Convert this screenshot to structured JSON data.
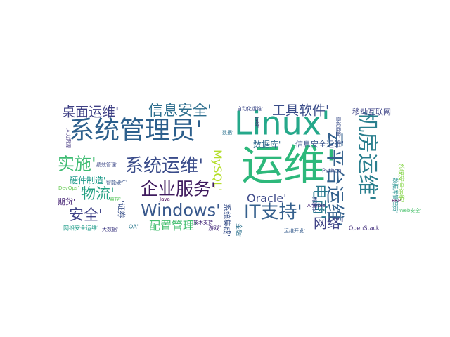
{
  "words": [
    {
      "text": "运维'",
      "color": "#2db87b"
    },
    {
      "text": "Linux'",
      "color": "#25a88a"
    },
    {
      "text": "系统管理员'",
      "color": "#2c5f8c"
    },
    {
      "text": "机房运维'",
      "color": "#2a7f8e"
    },
    {
      "text": "云平台运维'",
      "color": "#34618d"
    },
    {
      "text": "企业服务'",
      "color": "#3f1b5e"
    },
    {
      "text": "Windows'",
      "color": "#38588c"
    },
    {
      "text": "IT支持'",
      "color": "#35608d"
    },
    {
      "text": "系统运维'",
      "color": "#3a4c8a"
    },
    {
      "text": "桌面运维'",
      "color": "#3e3f84"
    },
    {
      "text": "信息安全'",
      "color": "#2d6e8e"
    },
    {
      "text": "工具软件'",
      "color": "#3b4d8a"
    },
    {
      "text": "实施'",
      "color": "#3fbc73"
    },
    {
      "text": "物流'",
      "color": "#23a082"
    },
    {
      "text": "安全'",
      "color": "#404387"
    },
    {
      "text": "配置管理'",
      "color": "#44bf70"
    },
    {
      "text": "网络'",
      "color": "#414487"
    },
    {
      "text": "电商'",
      "color": "#2a788e"
    },
    {
      "text": "MySQL'",
      "color": "#b5de2b"
    },
    {
      "text": "Oracle'",
      "color": "#3e4a89"
    },
    {
      "text": "数据库'",
      "color": "#31688e"
    },
    {
      "text": "信息安全运维'",
      "color": "#3a548c"
    },
    {
      "text": "硬件制造'",
      "color": "#1f9a8a"
    },
    {
      "text": "移动互联网'",
      "color": "#404688"
    },
    {
      "text": "系统集成'",
      "color": "#3b528b"
    },
    {
      "text": "Python",
      "color": "#3e4c8a"
    },
    {
      "text": "数据库管理员'",
      "color": "#21908d"
    },
    {
      "text": "网络安全运维'",
      "color": "#1e9c89"
    },
    {
      "text": "OpenStack'",
      "color": "#46327e"
    },
    {
      "text": "技术支持",
      "color": "#472c7a"
    },
    {
      "text": "期货'",
      "color": "#482475"
    },
    {
      "text": "人力资源",
      "color": "#453781"
    },
    {
      "text": "'证券",
      "color": "#3b528b"
    },
    {
      "text": "运维开发'",
      "color": "#365c8d"
    },
    {
      "text": "金融'",
      "color": "#2c728e"
    },
    {
      "text": "游戏'",
      "color": "#472d7b"
    },
    {
      "text": "Ansible",
      "color": "#482878"
    },
    {
      "text": "绩效管理'",
      "color": "#3e4989"
    },
    {
      "text": "FRP",
      "color": "#440154"
    },
    {
      "text": "DevOps'",
      "color": "#6ccd5a"
    },
    {
      "text": "Web安全'",
      "color": "#4ac16d"
    },
    {
      "text": "系统安全运维'",
      "color": "#86d549"
    },
    {
      "text": "智能硬件'",
      "color": "#3a548c"
    },
    {
      "text": "自动化运维'",
      "color": "#3e4a89"
    },
    {
      "text": "数据'",
      "color": "#2c728e"
    },
    {
      "text": "运维'",
      "color": "#481a6c"
    },
    {
      "text": "重视运维'",
      "color": "#3c4f8a"
    },
    {
      "text": "监控'",
      "color": "#5ec962"
    },
    {
      "text": "OA'",
      "color": "#2a788e"
    },
    {
      "text": "新媒体'",
      "color": "#3f4788"
    },
    {
      "text": "大数据'",
      "color": "#433e85"
    },
    {
      "text": "Java",
      "color": "#440154"
    }
  ]
}
